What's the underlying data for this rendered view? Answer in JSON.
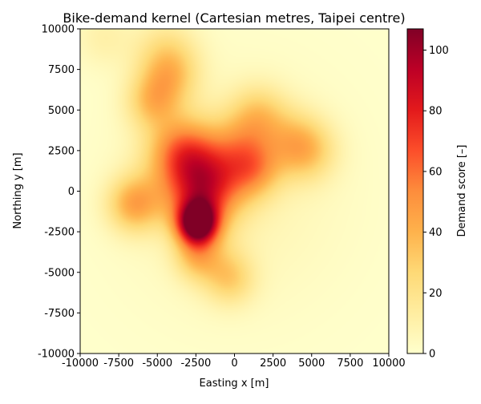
{
  "chart_data": {
    "type": "heatmap",
    "title": "Bike-demand kernel (Cartesian metres, Taipei centre)",
    "xlabel": "Easting x [m]",
    "ylabel": "Northing y [m]",
    "xlim": [
      -10000,
      10000
    ],
    "ylim": [
      -10000,
      10000
    ],
    "xticks": [
      -10000,
      -7500,
      -5000,
      -2500,
      0,
      2500,
      5000,
      7500,
      10000
    ],
    "yticks": [
      -10000,
      -7500,
      -5000,
      -2500,
      0,
      2500,
      5000,
      7500,
      10000
    ],
    "colorbar": {
      "label": "Demand score [–]",
      "range": [
        0,
        107
      ],
      "ticks": [
        0,
        20,
        40,
        60,
        80,
        100
      ],
      "colormap": "YlOrRd"
    },
    "grid": false,
    "hotspots": [
      {
        "x": -2400,
        "y": -2000,
        "peak": 107,
        "spread": 900
      },
      {
        "x": -2500,
        "y": 1200,
        "peak": 45,
        "spread": 2000
      },
      {
        "x": -3500,
        "y": 2500,
        "peak": 30,
        "spread": 1400
      },
      {
        "x": -1500,
        "y": 500,
        "peak": 30,
        "spread": 1600
      },
      {
        "x": -2300,
        "y": -800,
        "peak": 20,
        "spread": 1400
      },
      {
        "x": 1300,
        "y": 1300,
        "peak": 32,
        "spread": 1200
      },
      {
        "x": 500,
        "y": 2800,
        "peak": 20,
        "spread": 1300
      },
      {
        "x": -5300,
        "y": 5500,
        "peak": 30,
        "spread": 1200
      },
      {
        "x": -4200,
        "y": 7200,
        "peak": 28,
        "spread": 1300
      },
      {
        "x": -4500,
        "y": 8800,
        "peak": 15,
        "spread": 1500
      },
      {
        "x": -6500,
        "y": -800,
        "peak": 40,
        "spread": 1200
      },
      {
        "x": 1500,
        "y": 4700,
        "peak": 25,
        "spread": 1300
      },
      {
        "x": 4700,
        "y": 2500,
        "peak": 28,
        "spread": 1300
      },
      {
        "x": 3500,
        "y": 3200,
        "peak": 18,
        "spread": 1400
      },
      {
        "x": -2500,
        "y": -4000,
        "peak": 25,
        "spread": 1000
      },
      {
        "x": -200,
        "y": -5500,
        "peak": 20,
        "spread": 1100
      },
      {
        "x": -1200,
        "y": -4500,
        "peak": 14,
        "spread": 1300
      },
      {
        "x": -8500,
        "y": 9500,
        "peak": 10,
        "spread": 1300
      },
      {
        "x": 0,
        "y": 0,
        "peak": 8,
        "spread": 5000
      }
    ]
  }
}
